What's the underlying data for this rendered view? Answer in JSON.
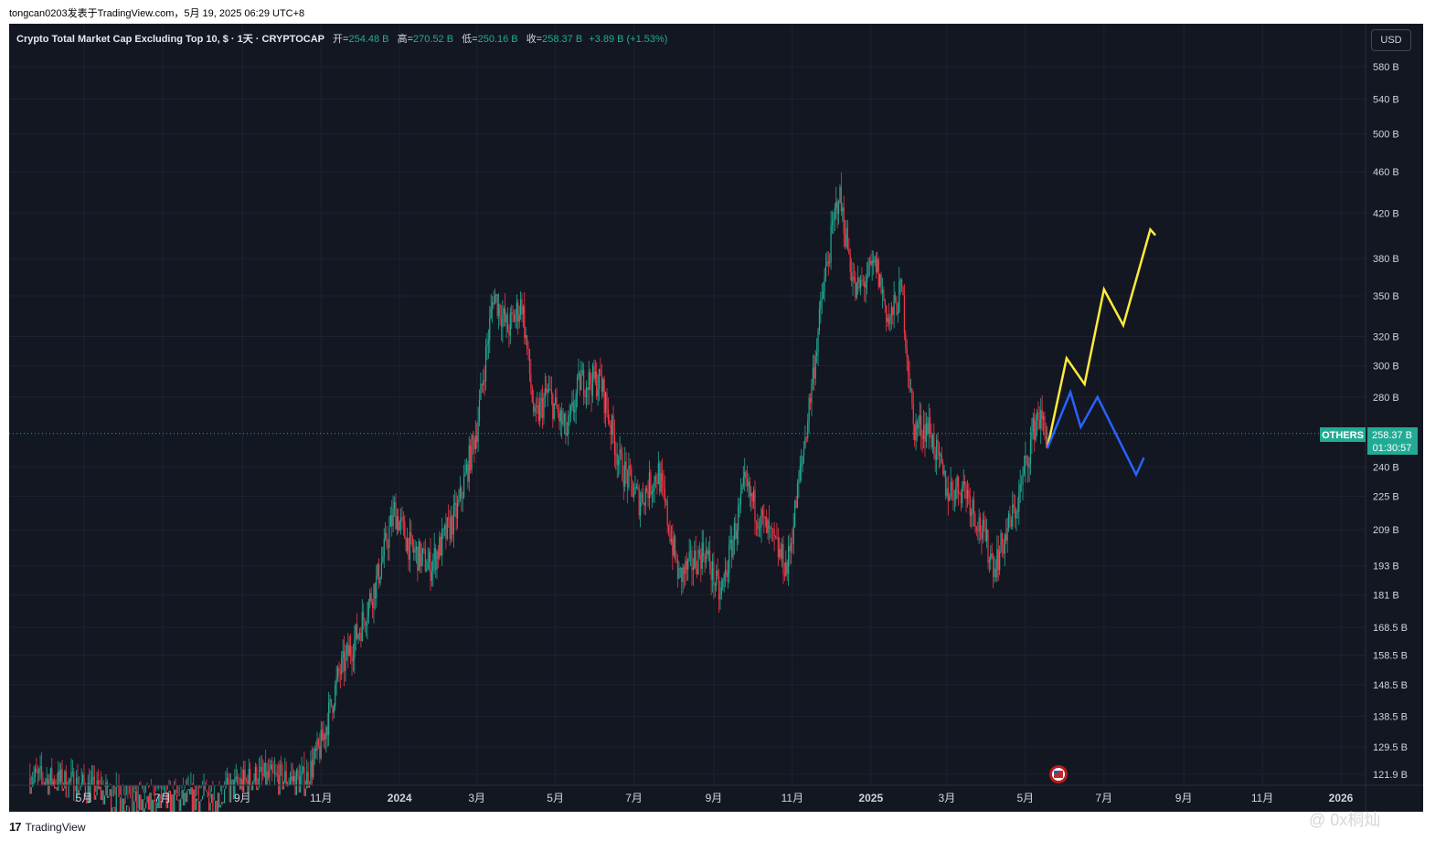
{
  "caption": "tongcan0203发表于TradingView.com，5月 19, 2025 06:29 UTC+8",
  "legend": {
    "title": "Crypto Total Market Cap Excluding Top 10, $ · 1天 · CRYPTOCAP",
    "open_label": "开=",
    "open": "254.48 B",
    "high_label": "高=",
    "high": "270.52 B",
    "low_label": "低=",
    "low": "250.16 B",
    "close_label": "收=",
    "close": "258.37 B",
    "change": "+3.89 B (+1.53%)"
  },
  "currency_button": "USD",
  "price_tag": {
    "symbol": "OTHERS",
    "price": "258.37 B",
    "countdown": "01:30:57"
  },
  "footer": {
    "logo": "17",
    "brand": "TradingView"
  },
  "watermark": "@ 0x桐灿",
  "colors": {
    "background": "#131722",
    "up": "#22ab94",
    "down": "#f23645",
    "grid": "#1e2230",
    "axis_text": "#d1d4dc",
    "projection_up": "#ffeb3b",
    "projection_down": "#2962ff"
  },
  "chart_data": {
    "type": "candlestick",
    "title": "Crypto Total Market Cap Excluding Top 10",
    "scale": "log",
    "y_unit": "B USD",
    "y_ticks": [
      580,
      540,
      500,
      460,
      420,
      380,
      350,
      320,
      300,
      280,
      240,
      225,
      209,
      193,
      181,
      168.5,
      158.5,
      148.5,
      138.5,
      129.5,
      121.9
    ],
    "y_tick_labels": [
      "580 B",
      "540 B",
      "500 B",
      "460 B",
      "420 B",
      "380 B",
      "350 B",
      "320 B",
      "300 B",
      "280 B",
      "240 B",
      "225 B",
      "209 B",
      "193 B",
      "181 B",
      "168.5 B",
      "158.5 B",
      "148.5 B",
      "138.5 B",
      "129.5 B",
      "121.9 B"
    ],
    "x_ticks": [
      {
        "date": "2023-05-01",
        "label": "5月"
      },
      {
        "date": "2023-07-01",
        "label": "7月"
      },
      {
        "date": "2023-09-01",
        "label": "9月"
      },
      {
        "date": "2023-11-01",
        "label": "11月"
      },
      {
        "date": "2024-01-01",
        "label": "2024"
      },
      {
        "date": "2024-03-01",
        "label": "3月"
      },
      {
        "date": "2024-05-01",
        "label": "5月"
      },
      {
        "date": "2024-07-01",
        "label": "7月"
      },
      {
        "date": "2024-09-01",
        "label": "9月"
      },
      {
        "date": "2024-11-01",
        "label": "11月"
      },
      {
        "date": "2025-01-01",
        "label": "2025"
      },
      {
        "date": "2025-03-01",
        "label": "3月"
      },
      {
        "date": "2025-05-01",
        "label": "5月"
      },
      {
        "date": "2025-07-01",
        "label": "7月"
      },
      {
        "date": "2025-09-01",
        "label": "9月"
      },
      {
        "date": "2025-11-01",
        "label": "11月"
      },
      {
        "date": "2026-01-01",
        "label": "2026"
      }
    ],
    "x_range": [
      "2023-03-18",
      "2026-01-10"
    ],
    "close_path": [
      {
        "date": "2023-03-20",
        "value": 121
      },
      {
        "date": "2023-04-25",
        "value": 119
      },
      {
        "date": "2023-06-15",
        "value": 113
      },
      {
        "date": "2023-08-15",
        "value": 116
      },
      {
        "date": "2023-09-10",
        "value": 121
      },
      {
        "date": "2023-10-20",
        "value": 120
      },
      {
        "date": "2023-11-01",
        "value": 130
      },
      {
        "date": "2023-11-15",
        "value": 152
      },
      {
        "date": "2023-12-01",
        "value": 168
      },
      {
        "date": "2023-12-15",
        "value": 188
      },
      {
        "date": "2023-12-28",
        "value": 218
      },
      {
        "date": "2024-01-10",
        "value": 200
      },
      {
        "date": "2024-01-25",
        "value": 193
      },
      {
        "date": "2024-02-15",
        "value": 218
      },
      {
        "date": "2024-03-01",
        "value": 262
      },
      {
        "date": "2024-03-14",
        "value": 352
      },
      {
        "date": "2024-03-25",
        "value": 325
      },
      {
        "date": "2024-04-05",
        "value": 345
      },
      {
        "date": "2024-04-15",
        "value": 265
      },
      {
        "date": "2024-04-25",
        "value": 283
      },
      {
        "date": "2024-05-10",
        "value": 258
      },
      {
        "date": "2024-05-20",
        "value": 290
      },
      {
        "date": "2024-06-05",
        "value": 290
      },
      {
        "date": "2024-06-20",
        "value": 242
      },
      {
        "date": "2024-07-05",
        "value": 223
      },
      {
        "date": "2024-07-20",
        "value": 237
      },
      {
        "date": "2024-08-05",
        "value": 188
      },
      {
        "date": "2024-08-25",
        "value": 200
      },
      {
        "date": "2024-09-06",
        "value": 180
      },
      {
        "date": "2024-09-25",
        "value": 230
      },
      {
        "date": "2024-10-10",
        "value": 211
      },
      {
        "date": "2024-10-28",
        "value": 192
      },
      {
        "date": "2024-11-12",
        "value": 262
      },
      {
        "date": "2024-11-25",
        "value": 355
      },
      {
        "date": "2024-12-07",
        "value": 440
      },
      {
        "date": "2024-12-20",
        "value": 352
      },
      {
        "date": "2025-01-05",
        "value": 375
      },
      {
        "date": "2025-01-15",
        "value": 330
      },
      {
        "date": "2025-01-25",
        "value": 355
      },
      {
        "date": "2025-02-03",
        "value": 262
      },
      {
        "date": "2025-02-15",
        "value": 262
      },
      {
        "date": "2025-03-01",
        "value": 228
      },
      {
        "date": "2025-03-15",
        "value": 230
      },
      {
        "date": "2025-04-07",
        "value": 193
      },
      {
        "date": "2025-04-25",
        "value": 222
      },
      {
        "date": "2025-05-10",
        "value": 270
      },
      {
        "date": "2025-05-18",
        "value": 258.37
      }
    ],
    "projection_up": [
      {
        "date": "2025-05-18",
        "value": 250
      },
      {
        "date": "2025-06-02",
        "value": 305
      },
      {
        "date": "2025-06-16",
        "value": 288
      },
      {
        "date": "2025-07-01",
        "value": 355
      },
      {
        "date": "2025-07-16",
        "value": 328
      },
      {
        "date": "2025-08-06",
        "value": 405
      },
      {
        "date": "2025-08-10",
        "value": 400
      }
    ],
    "projection_down": [
      {
        "date": "2025-05-18",
        "value": 250
      },
      {
        "date": "2025-06-05",
        "value": 283
      },
      {
        "date": "2025-06-13",
        "value": 262
      },
      {
        "date": "2025-06-26",
        "value": 280
      },
      {
        "date": "2025-07-26",
        "value": 236
      },
      {
        "date": "2025-08-01",
        "value": 245
      }
    ],
    "last_price": 258.37,
    "grid": true
  }
}
